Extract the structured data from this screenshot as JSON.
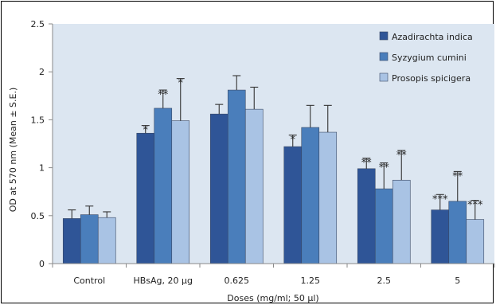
{
  "chart_data": {
    "type": "bar",
    "xlabel": "Doses (mg/ml; 50 µl)",
    "ylabel": "OD at 570 nm (Mean ± S.E.)",
    "ylim": [
      0,
      2.5
    ],
    "yticks": [
      "0",
      "0.5",
      "1",
      "1.5",
      "2",
      "2.5"
    ],
    "grid": false,
    "legend_position": "top-right",
    "categories": [
      "Control",
      "HBsAg, 20 µg",
      "0.625",
      "1.25",
      "2.5",
      "5"
    ],
    "series": [
      {
        "name": "Azadirachta indica",
        "color": "#2f5597",
        "values": [
          0.47,
          1.36,
          1.56,
          1.22,
          0.99,
          0.56
        ],
        "errors": [
          0.09,
          0.08,
          0.1,
          0.12,
          0.11,
          0.16
        ],
        "significance": [
          "",
          "*",
          "",
          "*",
          "**",
          "***"
        ]
      },
      {
        "name": "Syzygium cumini",
        "color": "#4a7ebb",
        "values": [
          0.51,
          1.62,
          1.81,
          1.42,
          0.78,
          0.65
        ],
        "errors": [
          0.09,
          0.19,
          0.15,
          0.23,
          0.27,
          0.31
        ],
        "significance": [
          "",
          "**",
          "",
          "",
          "**",
          "**"
        ]
      },
      {
        "name": "Prosopis spicigera",
        "color": "#a9c3e4",
        "values": [
          0.48,
          1.49,
          1.61,
          1.37,
          0.87,
          0.46
        ],
        "errors": [
          0.06,
          0.44,
          0.23,
          0.28,
          0.31,
          0.2
        ],
        "significance": [
          "",
          "*",
          "",
          "",
          "**",
          "***"
        ]
      }
    ]
  }
}
